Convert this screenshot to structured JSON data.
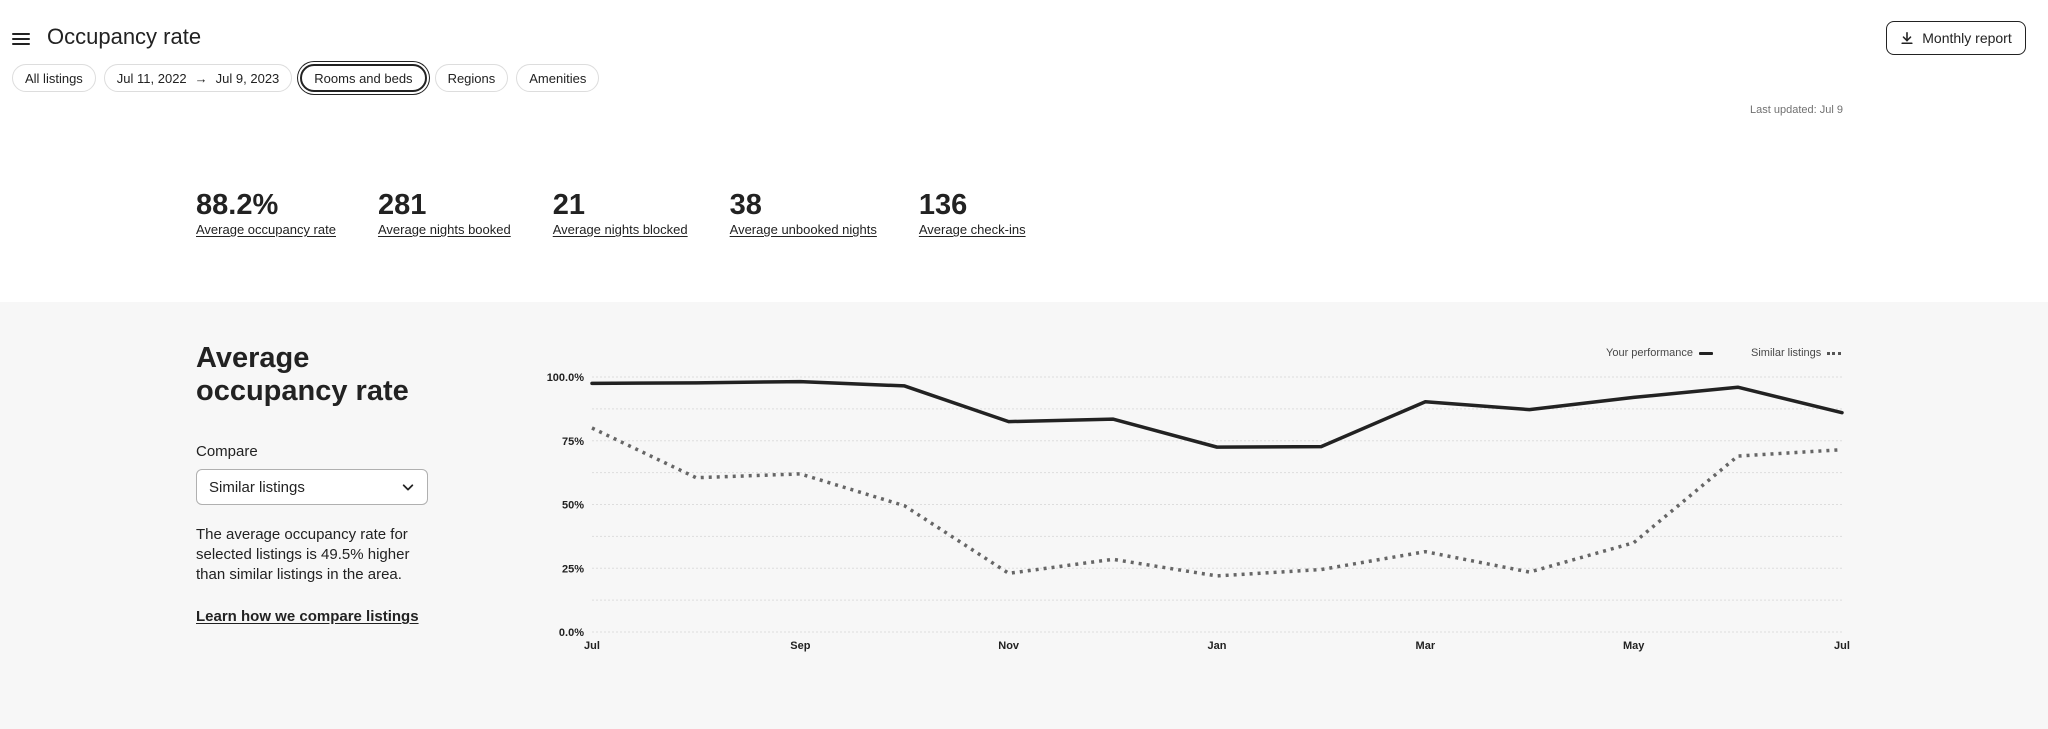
{
  "header": {
    "title": "Occupancy rate",
    "menu_icon": "hamburger-menu-icon",
    "report_button": {
      "label": "Monthly report",
      "icon": "download-icon"
    }
  },
  "filters": {
    "all_listings": "All listings",
    "date_start": "Jul 11, 2022",
    "date_arrow": "→",
    "date_end": "Jul 9, 2023",
    "rooms_and_beds": "Rooms and beds",
    "regions": "Regions",
    "amenities": "Amenities"
  },
  "last_updated": "Last updated: Jul 9",
  "stats": [
    {
      "value": "88.2%",
      "label": "Average occupancy rate"
    },
    {
      "value": "281",
      "label": "Average nights booked"
    },
    {
      "value": "21",
      "label": "Average nights blocked"
    },
    {
      "value": "38",
      "label": "Average unbooked nights"
    },
    {
      "value": "136",
      "label": "Average check-ins"
    }
  ],
  "section": {
    "title": "Average occupancy rate",
    "compare_label": "Compare",
    "compare_value": "Similar listings",
    "compare_icon": "chevron-down-icon",
    "description": "The average occupancy rate for selected listings is 49.5% higher than similar listings in the area.",
    "learn_link": "Learn how we compare listings"
  },
  "chart_data": {
    "type": "line",
    "x_tick_labels": [
      "Jul",
      "Sep",
      "Nov",
      "Jan",
      "Mar",
      "May",
      "Jul"
    ],
    "y_tick_labels": [
      "100.0%",
      "75%",
      "50%",
      "25%",
      "0.0%"
    ],
    "ylim": [
      0,
      100
    ],
    "grid": true,
    "legend_position": "top-right",
    "point_index": [
      0,
      1,
      2,
      3,
      4,
      5,
      6,
      7,
      8,
      9,
      10,
      11,
      12
    ],
    "x_range": [
      0,
      12
    ],
    "series": [
      {
        "name": "Your performance",
        "style": "solid",
        "color": "#222222",
        "values": [
          97.5,
          97.7,
          98.2,
          96.5,
          82.5,
          83.5,
          72.5,
          72.7,
          90.3,
          87.2,
          92.0,
          96.0,
          86.0
        ]
      },
      {
        "name": "Similar listings",
        "style": "dotted",
        "color": "#666666",
        "values": [
          80.0,
          60.5,
          62.0,
          49.5,
          23.0,
          28.5,
          22.0,
          24.5,
          31.5,
          23.5,
          35.0,
          69.0,
          71.5
        ]
      }
    ]
  }
}
